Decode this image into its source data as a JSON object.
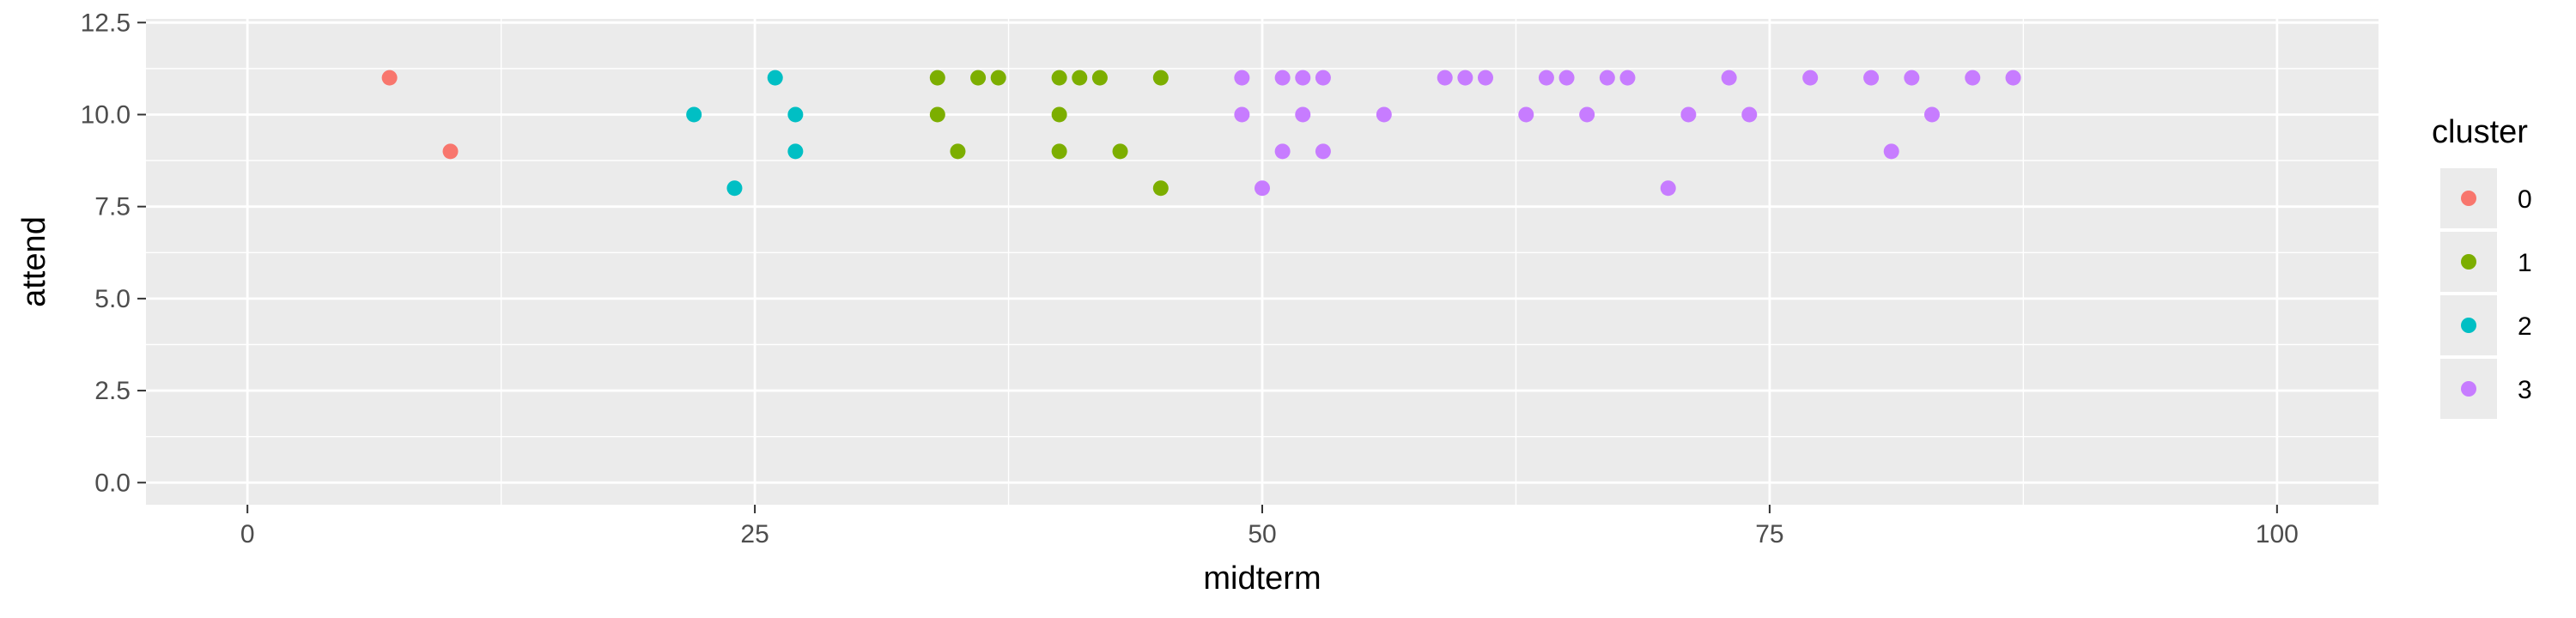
{
  "chart_data": {
    "type": "scatter",
    "xlabel": "midterm",
    "ylabel": "attend",
    "xlim": [
      -5,
      105
    ],
    "ylim": [
      -0.6,
      12.6
    ],
    "x_ticks": [
      0,
      25,
      50,
      75,
      100
    ],
    "y_ticks": [
      0.0,
      2.5,
      5.0,
      7.5,
      10.0,
      12.5
    ],
    "x_tick_labels": [
      "0",
      "25",
      "50",
      "75",
      "100"
    ],
    "y_tick_labels": [
      "0.0",
      "2.5",
      "5.0",
      "7.5",
      "10.0",
      "12.5"
    ],
    "grid": true,
    "legend": {
      "title": "cluster",
      "position": "right"
    },
    "series": [
      {
        "name": "0",
        "color": "#F8766D",
        "points": [
          [
            7,
            11
          ],
          [
            10,
            9
          ]
        ]
      },
      {
        "name": "1",
        "color": "#7CAE00",
        "points": [
          [
            34,
            11
          ],
          [
            34,
            10
          ],
          [
            35,
            9
          ],
          [
            36,
            11
          ],
          [
            37,
            11
          ],
          [
            40,
            11
          ],
          [
            40,
            10
          ],
          [
            40,
            9
          ],
          [
            41,
            11
          ],
          [
            42,
            11
          ],
          [
            43,
            9
          ],
          [
            45,
            11
          ],
          [
            45,
            8
          ]
        ]
      },
      {
        "name": "2",
        "color": "#00BFC4",
        "points": [
          [
            22,
            10
          ],
          [
            24,
            8
          ],
          [
            26,
            11
          ],
          [
            27,
            10
          ],
          [
            27,
            9
          ]
        ]
      },
      {
        "name": "3",
        "color": "#C77CFF",
        "points": [
          [
            49,
            11
          ],
          [
            49,
            10
          ],
          [
            50,
            8
          ],
          [
            51,
            11
          ],
          [
            51,
            9
          ],
          [
            52,
            11
          ],
          [
            52,
            10
          ],
          [
            53,
            11
          ],
          [
            53,
            9
          ],
          [
            56,
            10
          ],
          [
            59,
            11
          ],
          [
            60,
            11
          ],
          [
            61,
            11
          ],
          [
            63,
            10
          ],
          [
            64,
            11
          ],
          [
            65,
            11
          ],
          [
            66,
            10
          ],
          [
            67,
            11
          ],
          [
            68,
            11
          ],
          [
            70,
            8
          ],
          [
            71,
            10
          ],
          [
            73,
            11
          ],
          [
            74,
            10
          ],
          [
            77,
            11
          ],
          [
            80,
            11
          ],
          [
            81,
            9
          ],
          [
            82,
            11
          ],
          [
            83,
            10
          ],
          [
            85,
            11
          ],
          [
            87,
            11
          ]
        ]
      }
    ]
  }
}
